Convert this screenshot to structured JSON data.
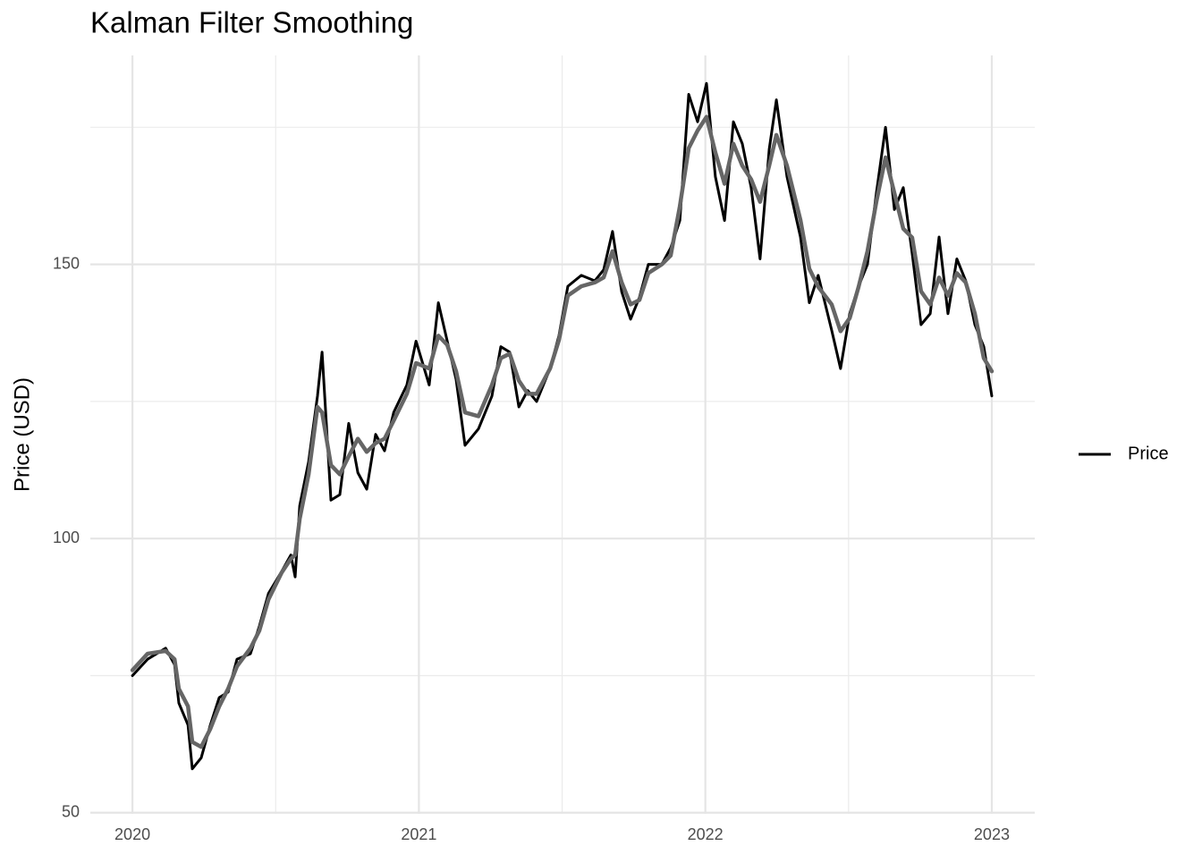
{
  "chart_data": {
    "type": "line",
    "title": "Kalman Filter Smoothing",
    "y_label": "Price (USD)",
    "x": [
      2020.0,
      2020.053,
      2020.116,
      2020.147,
      2020.162,
      2020.194,
      2020.209,
      2020.24,
      2020.272,
      2020.303,
      2020.334,
      2020.365,
      2020.412,
      2020.443,
      2020.475,
      2020.521,
      2020.553,
      2020.568,
      2020.584,
      2020.615,
      2020.646,
      2020.662,
      2020.693,
      2020.724,
      2020.755,
      2020.787,
      2020.818,
      2020.849,
      2020.88,
      2020.912,
      2020.958,
      2020.99,
      2021.036,
      2021.068,
      2021.099,
      2021.13,
      2021.161,
      2021.208,
      2021.255,
      2021.286,
      2021.317,
      2021.349,
      2021.38,
      2021.411,
      2021.458,
      2021.489,
      2021.52,
      2021.567,
      2021.614,
      2021.645,
      2021.676,
      2021.708,
      2021.739,
      2021.77,
      2021.801,
      2021.848,
      2021.879,
      2021.911,
      2021.942,
      2021.973,
      2022.004,
      2022.035,
      2022.067,
      2022.098,
      2022.129,
      2022.16,
      2022.191,
      2022.223,
      2022.248,
      2022.285,
      2022.332,
      2022.363,
      2022.394,
      2022.441,
      2022.472,
      2022.504,
      2022.535,
      2022.566,
      2022.597,
      2022.629,
      2022.66,
      2022.691,
      2022.722,
      2022.753,
      2022.785,
      2022.816,
      2022.847,
      2022.878,
      2022.909,
      2022.941,
      2022.972,
      2023.0
    ],
    "series": [
      {
        "name": "Price",
        "color": "#000000",
        "values": [
          75,
          78,
          80,
          77,
          70,
          66,
          58,
          60,
          66,
          71,
          72,
          78,
          79,
          84,
          90,
          94,
          97,
          93,
          106,
          114,
          126,
          134,
          107,
          108,
          121,
          112,
          109,
          119,
          116,
          123,
          128,
          136,
          128,
          143,
          136,
          129,
          117,
          120,
          126,
          135,
          134,
          124,
          127,
          125,
          131,
          137,
          146,
          148,
          147,
          149,
          156,
          145,
          140,
          144,
          150,
          150,
          153,
          158,
          181,
          176,
          183,
          166,
          158,
          176,
          172,
          164,
          151,
          171,
          180,
          166,
          155,
          143,
          148,
          138,
          131,
          141,
          146,
          150,
          163,
          175,
          160,
          164,
          152,
          139,
          141,
          155,
          141,
          151,
          147,
          139,
          135,
          126
        ]
      },
      {
        "color": "#666666",
        "values": [
          76,
          79,
          79.5,
          78,
          72.6,
          69.4,
          62.9,
          62,
          65.3,
          69.4,
          72.6,
          76.7,
          80,
          83.2,
          88.9,
          93.8,
          96.3,
          97,
          103.6,
          111.7,
          124,
          123,
          113.4,
          111.7,
          115,
          118.2,
          115.8,
          117.4,
          118.2,
          121.5,
          126.4,
          132,
          131,
          137,
          135.3,
          130.5,
          123,
          122.3,
          128,
          132.9,
          133.7,
          128.8,
          126.4,
          126.4,
          131,
          136.2,
          144.3,
          146,
          146.7,
          147.6,
          152.4,
          146.7,
          142.7,
          143.5,
          148.4,
          150,
          151.6,
          160.6,
          171.2,
          174.4,
          176.9,
          170.4,
          164.7,
          172,
          168,
          165.5,
          161.4,
          168,
          173.6,
          168,
          158.1,
          149.2,
          145.9,
          142.7,
          137.8,
          140.2,
          145.9,
          152.4,
          161.4,
          169.5,
          163,
          156.5,
          154.9,
          145.1,
          142.7,
          147.6,
          144.3,
          148.4,
          146.7,
          141,
          132.9,
          130.5
        ]
      }
    ],
    "xlim": [
      2019.853,
      2023.15
    ],
    "xticks": [
      2020,
      2021,
      2022,
      2023
    ],
    "xminor": [
      2020.5,
      2021.5,
      2022.5
    ],
    "ylim": [
      49.8,
      188.1
    ],
    "yticks": [
      50,
      100,
      150
    ],
    "yminor": [
      75,
      125,
      175
    ],
    "grid": true,
    "legend": "right"
  }
}
